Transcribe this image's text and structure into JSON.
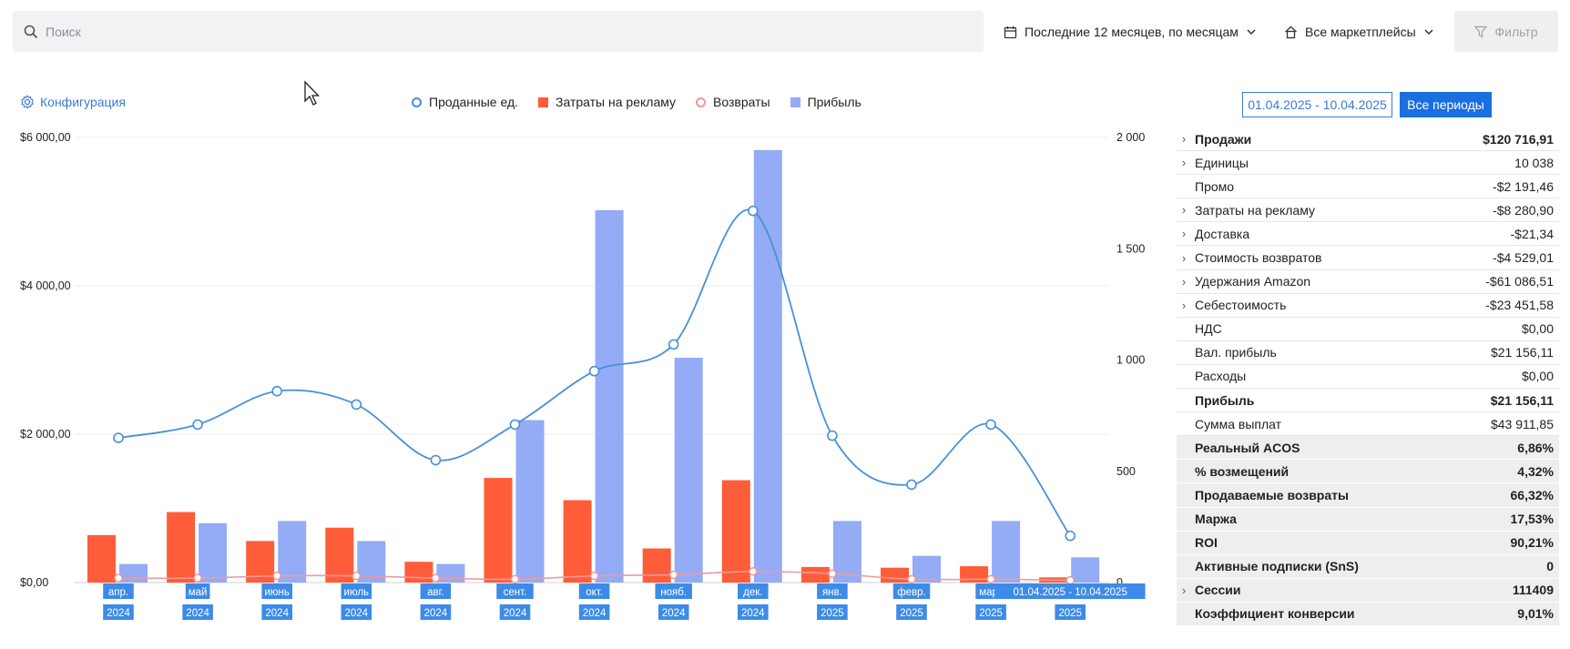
{
  "search": {
    "placeholder": "Поиск"
  },
  "top": {
    "period": "Последние 12 месяцев, по месяцам",
    "marketplaces": "Все маркетплейсы",
    "filter": "Фильтр"
  },
  "config_label": "Конфигурация",
  "legend": {
    "sold": "Проданные ед.",
    "ads": "Затраты на рекламу",
    "returns": "Возвраты",
    "profit": "Прибыль"
  },
  "range_button": "01.04.2025 - 10.04.2025",
  "all_periods_button": "Все периоды",
  "colors": {
    "ads": "#ff5c39",
    "profit": "#94abf5",
    "sold": "#4a90d9",
    "returns": "#ef9a9a",
    "accent": "#1a6fe0"
  },
  "chart_data": {
    "type": "bar",
    "categories": [
      [
        "апр.",
        "2024"
      ],
      [
        "май",
        "2024"
      ],
      [
        "июнь",
        "2024"
      ],
      [
        "июль",
        "2024"
      ],
      [
        "авг.",
        "2024"
      ],
      [
        "сент.",
        "2024"
      ],
      [
        "окт.",
        "2024"
      ],
      [
        "нояб.",
        "2024"
      ],
      [
        "дек.",
        "2024"
      ],
      [
        "янв.",
        "2025"
      ],
      [
        "февр.",
        "2025"
      ],
      [
        "март",
        "2025"
      ],
      [
        "01.04.2025 - 10.04.2025",
        "2025"
      ]
    ],
    "left_axis": {
      "ticks": [
        "$6 000,00",
        "$4 000,00",
        "$2 000,00",
        "$0,00"
      ],
      "ylim": [
        0,
        6000
      ]
    },
    "right_axis": {
      "ticks": [
        "2 000",
        "1 500",
        "1 000",
        "500",
        "0"
      ],
      "ylim": [
        0,
        2000
      ]
    },
    "series": [
      {
        "name": "Затраты на рекламу",
        "type": "bar",
        "axis": "left",
        "values": [
          640,
          950,
          560,
          740,
          280,
          1410,
          1110,
          460,
          1380,
          210,
          200,
          220,
          70
        ]
      },
      {
        "name": "Прибыль",
        "type": "bar",
        "axis": "left",
        "values": [
          250,
          800,
          830,
          560,
          250,
          2190,
          5020,
          3030,
          5830,
          830,
          360,
          830,
          340
        ]
      },
      {
        "name": "Проданные ед.",
        "type": "line",
        "axis": "right",
        "values": [
          650,
          710,
          860,
          800,
          550,
          710,
          950,
          1070,
          1670,
          660,
          440,
          710,
          210
        ]
      },
      {
        "name": "Возвраты",
        "type": "line",
        "axis": "right",
        "values": [
          20,
          20,
          30,
          30,
          20,
          15,
          30,
          35,
          50,
          40,
          15,
          15,
          10
        ]
      }
    ]
  },
  "metrics": [
    {
      "label": "Продажи",
      "value": "$120 716,91",
      "expand": true,
      "bold": true,
      "shade": false
    },
    {
      "label": "Единицы",
      "value": "10 038",
      "expand": true,
      "bold": false,
      "shade": false
    },
    {
      "label": "Промо",
      "value": "-$2 191,46",
      "expand": false,
      "bold": false,
      "shade": false
    },
    {
      "label": "Затраты на рекламу",
      "value": "-$8 280,90",
      "expand": true,
      "bold": false,
      "shade": false
    },
    {
      "label": "Доставка",
      "value": "-$21,34",
      "expand": true,
      "bold": false,
      "shade": false
    },
    {
      "label": "Стоимость возвратов",
      "value": "-$4 529,01",
      "expand": true,
      "bold": false,
      "shade": false
    },
    {
      "label": "Удержания Amazon",
      "value": "-$61 086,51",
      "expand": true,
      "bold": false,
      "shade": false
    },
    {
      "label": "Себестоимость",
      "value": "-$23 451,58",
      "expand": true,
      "bold": false,
      "shade": false
    },
    {
      "label": "НДС",
      "value": "$0,00",
      "expand": false,
      "bold": false,
      "shade": false
    },
    {
      "label": "Вал. прибыль",
      "value": "$21 156,11",
      "expand": false,
      "bold": false,
      "shade": false
    },
    {
      "label": "Расходы",
      "value": "$0,00",
      "expand": false,
      "bold": false,
      "shade": false
    },
    {
      "label": "Прибыль",
      "value": "$21 156,11",
      "expand": false,
      "bold": true,
      "shade": false
    },
    {
      "label": "Сумма выплат",
      "value": "$43 911,85",
      "expand": false,
      "bold": false,
      "shade": false
    },
    {
      "label": "Реальный ACOS",
      "value": "6,86%",
      "expand": false,
      "bold": true,
      "shade": true
    },
    {
      "label": "% возмещений",
      "value": "4,32%",
      "expand": false,
      "bold": true,
      "shade": true
    },
    {
      "label": "Продаваемые возвраты",
      "value": "66,32%",
      "expand": false,
      "bold": true,
      "shade": true
    },
    {
      "label": "Маржа",
      "value": "17,53%",
      "expand": false,
      "bold": true,
      "shade": true
    },
    {
      "label": "ROI",
      "value": "90,21%",
      "expand": false,
      "bold": true,
      "shade": true
    },
    {
      "label": "Активные подписки (SnS)",
      "value": "0",
      "expand": false,
      "bold": true,
      "shade": true
    },
    {
      "label": "Сессии",
      "value": "111409",
      "expand": true,
      "bold": true,
      "shade": true
    },
    {
      "label": "Коэффициент конверсии",
      "value": "9,01%",
      "expand": false,
      "bold": true,
      "shade": true
    }
  ]
}
